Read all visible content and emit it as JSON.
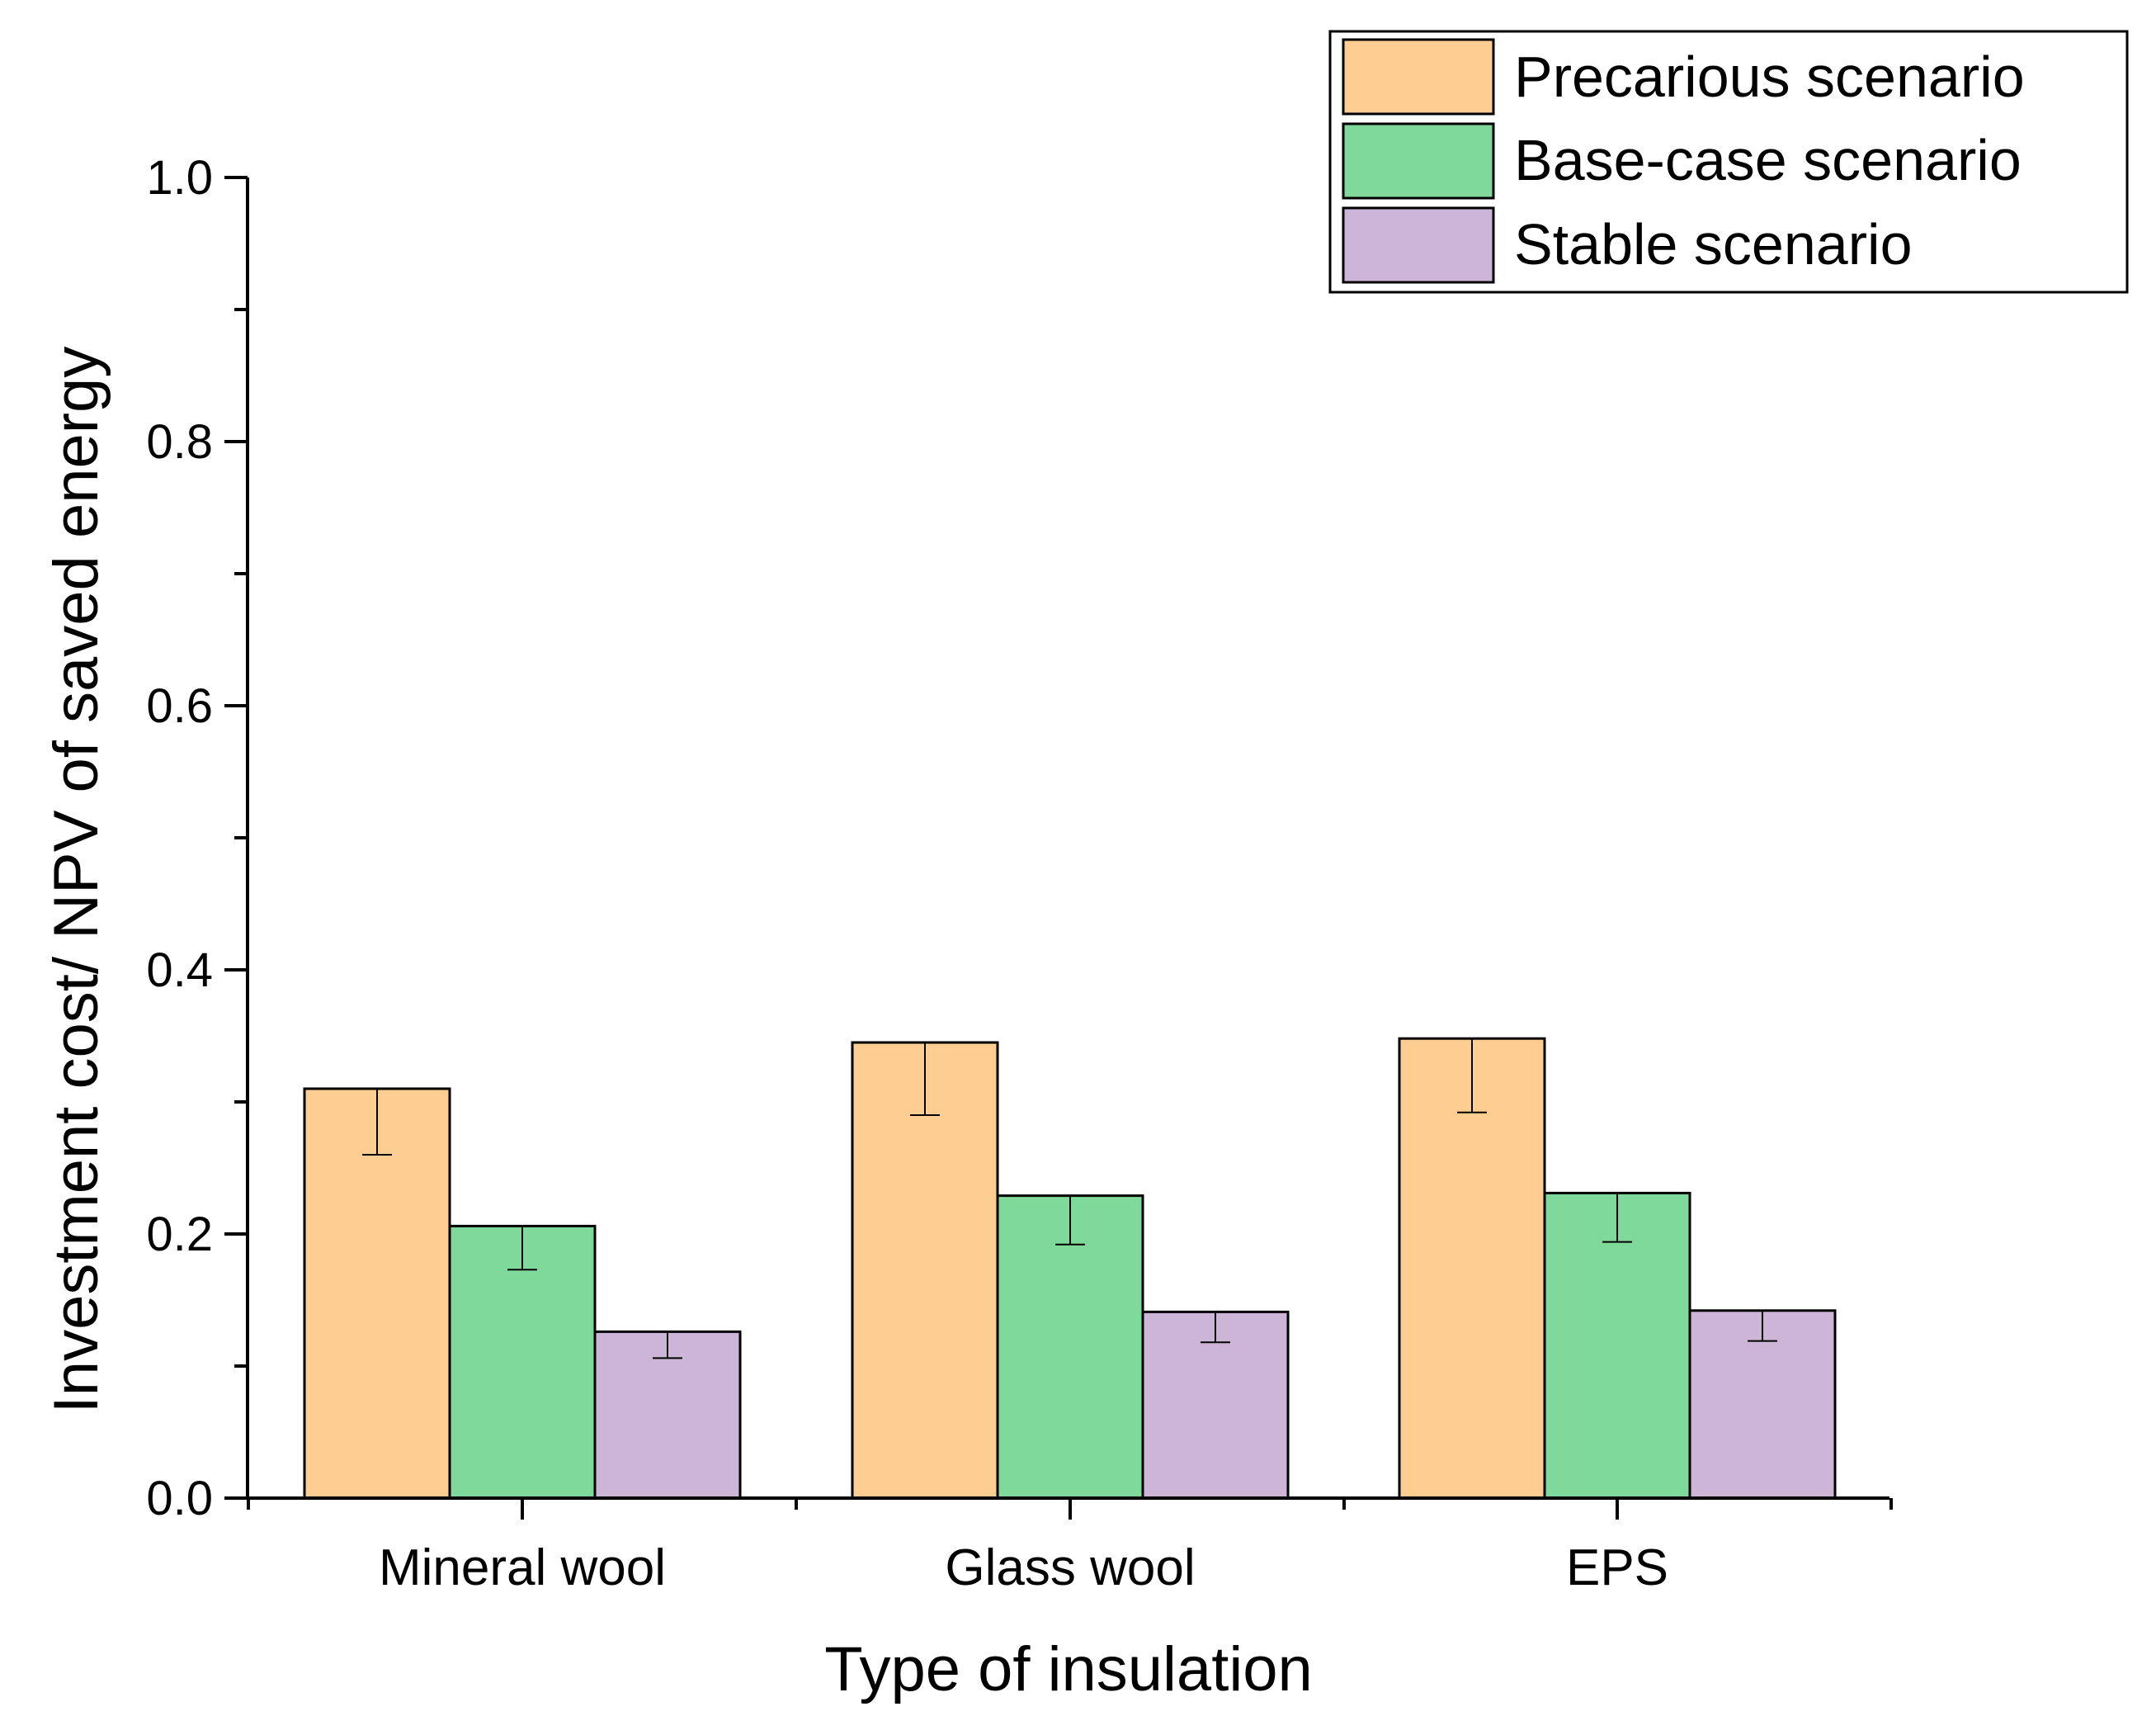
{
  "chart_data": {
    "type": "bar",
    "title": "",
    "xlabel": "Type of insulation",
    "ylabel": "Investment cost/ NPV of saved energy",
    "categories": [
      "Mineral wool",
      "Glass wool",
      "EPS"
    ],
    "ylim": [
      0.0,
      1.0
    ],
    "y_ticks": [
      0.0,
      0.2,
      0.4,
      0.6,
      0.8,
      1.0
    ],
    "y_tick_labels": [
      "0.0",
      "0.2",
      "0.4",
      "0.6",
      "0.8",
      "1.0"
    ],
    "grid": false,
    "legend_position": "top-right",
    "series": [
      {
        "name": "Precarious scenario",
        "color": "#fdcd91",
        "values": [
          0.31,
          0.345,
          0.348
        ],
        "error_lower": [
          0.26,
          0.29,
          0.292
        ]
      },
      {
        "name": "Base-case scenario",
        "color": "#7fd99a",
        "values": [
          0.206,
          0.229,
          0.231
        ],
        "error_lower": [
          0.173,
          0.192,
          0.194
        ]
      },
      {
        "name": "Stable scenario",
        "color": "#cdb5d8",
        "values": [
          0.126,
          0.141,
          0.142
        ],
        "error_lower": [
          0.106,
          0.118,
          0.119
        ]
      }
    ]
  }
}
